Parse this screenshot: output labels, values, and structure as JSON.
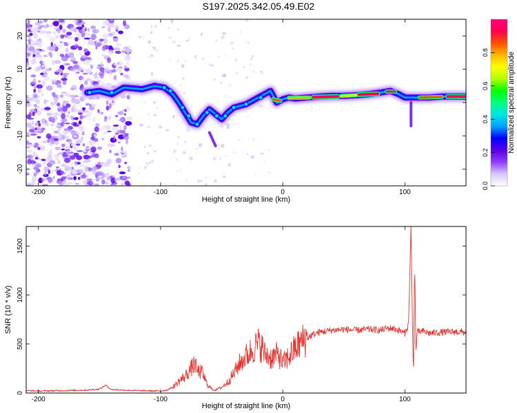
{
  "title": "S197.2025.342.05.49.E02",
  "chart_data": [
    {
      "type": "heatmap",
      "xlabel": "Height of straight line (km)",
      "ylabel": "Frequency (Hz)",
      "xlim": [
        -210,
        150
      ],
      "ylim": [
        -25,
        25
      ],
      "xticks": [
        -200,
        -100,
        0,
        100
      ],
      "yticks": [
        -20,
        -10,
        0,
        10,
        20
      ],
      "colorbar": {
        "label": "Normalized spectral amplitude",
        "range": [
          0,
          1
        ],
        "ticks": [
          "0.0",
          "0.2",
          "0.4",
          "0.6",
          "0.8"
        ],
        "colors": [
          "#ffffff",
          "#d8c8ff",
          "#8f3cff",
          "#5a00e6",
          "#0000ff",
          "#00a0ff",
          "#00e6e6",
          "#00ff80",
          "#00ff00",
          "#b4ff00",
          "#ffff00",
          "#ffb400",
          "#ff5000",
          "#ff0050",
          "#ff0078"
        ]
      },
      "ridge": {
        "name": "dominant frequency track",
        "points": [
          [
            -160,
            3
          ],
          [
            -150,
            3.5
          ],
          [
            -140,
            2.5
          ],
          [
            -130,
            4.5
          ],
          [
            -115,
            4
          ],
          [
            -105,
            5
          ],
          [
            -97,
            4.5
          ],
          [
            -90,
            2.5
          ],
          [
            -85,
            0
          ],
          [
            -80,
            -3
          ],
          [
            -75,
            -6
          ],
          [
            -70,
            -6.5
          ],
          [
            -65,
            -4
          ],
          [
            -60,
            -2
          ],
          [
            -55,
            -3.5
          ],
          [
            -50,
            -5
          ],
          [
            -45,
            -3
          ],
          [
            -40,
            -1.5
          ],
          [
            -35,
            -1
          ],
          [
            -30,
            -0.5
          ],
          [
            -25,
            0.5
          ],
          [
            -20,
            1.5
          ],
          [
            -15,
            2.5
          ],
          [
            -10,
            3.5
          ],
          [
            -5,
            0
          ],
          [
            0,
            1
          ],
          [
            5,
            1.5
          ],
          [
            10,
            1.2
          ],
          [
            20,
            1.5
          ],
          [
            30,
            1.8
          ],
          [
            40,
            2
          ],
          [
            50,
            2
          ],
          [
            60,
            2.2
          ],
          [
            70,
            2.5
          ],
          [
            80,
            3
          ],
          [
            88,
            3.5
          ],
          [
            95,
            2.5
          ],
          [
            100,
            1.5
          ],
          [
            105,
            1.5
          ],
          [
            110,
            1.5
          ],
          [
            120,
            1.5
          ],
          [
            130,
            1.8
          ],
          [
            140,
            1.8
          ],
          [
            150,
            1.8
          ]
        ]
      }
    },
    {
      "type": "line",
      "xlabel": "Height of straight line (km)",
      "ylabel": "SNR (10 * v/v)",
      "xlim": [
        -210,
        150
      ],
      "ylim": [
        0,
        1700
      ],
      "xticks": [
        -200,
        -100,
        0,
        100
      ],
      "yticks": [
        0,
        500,
        1000,
        1500
      ],
      "color": "#e8302e",
      "series": [
        {
          "name": "SNR",
          "x": [
            -210,
            -200,
            -180,
            -160,
            -150,
            -145,
            -140,
            -120,
            -100,
            -95,
            -90,
            -85,
            -80,
            -75,
            -72,
            -70,
            -66,
            -62,
            -58,
            -55,
            -50,
            -45,
            -40,
            -36,
            -32,
            -28,
            -25,
            -22,
            -20,
            -17,
            -15,
            -12,
            -10,
            -6,
            -3,
            0,
            4,
            8,
            12,
            15,
            20,
            25,
            30,
            40,
            50,
            60,
            70,
            80,
            85,
            90,
            95,
            100,
            103,
            105,
            106,
            107,
            108,
            109,
            110,
            115,
            120,
            130,
            140,
            150
          ],
          "y": [
            25,
            20,
            25,
            30,
            40,
            80,
            35,
            25,
            20,
            30,
            60,
            120,
            170,
            250,
            300,
            220,
            210,
            90,
            40,
            30,
            60,
            110,
            200,
            290,
            350,
            400,
            440,
            480,
            500,
            470,
            400,
            380,
            360,
            380,
            390,
            300,
            360,
            420,
            480,
            520,
            560,
            600,
            620,
            640,
            650,
            640,
            650,
            640,
            660,
            660,
            640,
            610,
            700,
            1700,
            850,
            150,
            1350,
            400,
            620,
            630,
            610,
            620,
            625,
            620
          ]
        }
      ]
    }
  ]
}
